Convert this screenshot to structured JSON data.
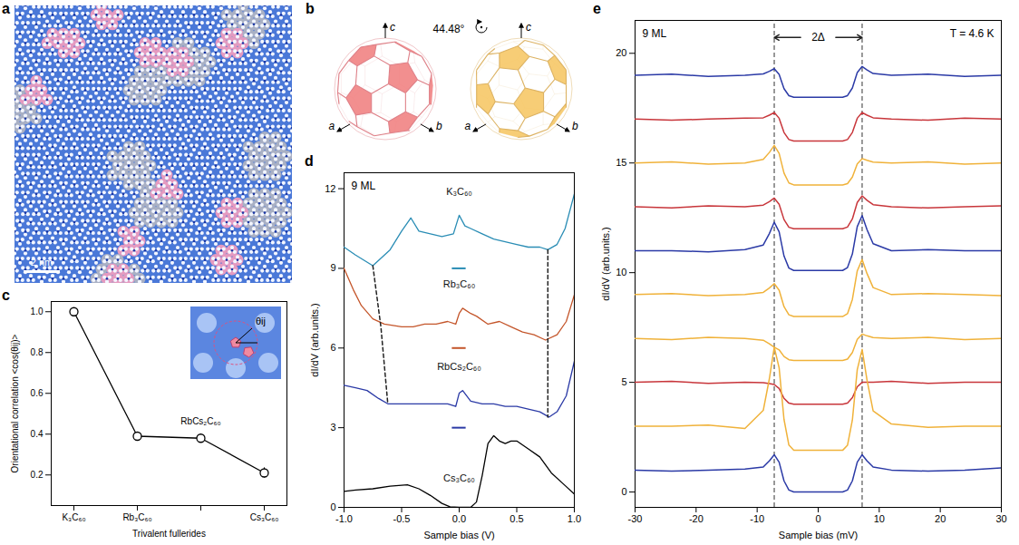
{
  "image": {
    "letter": "a",
    "scale_bar": "2 nm"
  },
  "diagram": {
    "letter": "b",
    "rotation": "44.48°",
    "axis_labels": [
      "a",
      "b",
      "c"
    ]
  },
  "chart_data": [
    {
      "letter": "c",
      "type": "line",
      "x_label": "Trivalent fullerides",
      "y_label": "Orientational correlation <cos(θij)>",
      "categories": [
        "K₃C₆₀",
        "Rb₃C₆₀",
        null,
        "Cs₃C₆₀"
      ],
      "values": [
        1.0,
        0.39,
        0.38,
        0.21
      ],
      "errors": [
        0,
        0.02,
        0.02,
        0.025
      ],
      "color": "#000000",
      "marker": "circle",
      "annotation": "RbCs₂C₆₀",
      "inset_label": "θij",
      "ylim": [
        0.05,
        1.05
      ],
      "yticks": [
        0.2,
        0.4,
        0.6,
        0.8,
        {
          "value": 1,
          "label": "1.0"
        }
      ]
    },
    {
      "letter": "d",
      "type": "line",
      "annotations": [
        "9 ML"
      ],
      "x_label": "Sample bias (V)",
      "y_label": "dI/dV (arb.units.)",
      "xlim": [
        -1,
        1
      ],
      "xticks": [
        {
          "value": -1,
          "label": "-1.0"
        },
        -0.5,
        {
          "value": 0,
          "label": "0.0"
        },
        0.5,
        {
          "value": 1,
          "label": "1.0"
        }
      ],
      "ylim": [
        0,
        12.6
      ],
      "yticks": [
        0,
        3,
        6,
        9,
        12
      ],
      "series": [
        {
          "name": "K₃C₆₀",
          "color": "#2a8db5",
          "zero": 9,
          "x": [
            -1,
            -0.9,
            -0.75,
            -0.6,
            -0.5,
            -0.42,
            -0.35,
            -0.25,
            -0.15,
            -0.05,
            0,
            0.05,
            0.1,
            0.2,
            0.3,
            0.4,
            0.5,
            0.6,
            0.7,
            0.77,
            0.85,
            0.92,
            1.0
          ],
          "values": [
            9.8,
            9.5,
            9.1,
            9.7,
            10.4,
            10.9,
            10.4,
            10.3,
            10.2,
            10.3,
            11.0,
            10.6,
            10.5,
            10.3,
            10.1,
            10.0,
            9.9,
            9.8,
            9.8,
            9.7,
            9.9,
            10.5,
            11.8
          ]
        },
        {
          "name": "Rb₃C₆₀",
          "color": "#c4562b",
          "zero": 6,
          "x": [
            -1,
            -0.92,
            -0.85,
            -0.75,
            -0.65,
            -0.5,
            -0.4,
            -0.3,
            -0.2,
            -0.1,
            -0.03,
            0,
            0.03,
            0.1,
            0.15,
            0.25,
            0.35,
            0.45,
            0.55,
            0.65,
            0.75,
            0.85,
            0.93,
            1.0
          ],
          "values": [
            9.0,
            8.2,
            7.6,
            7.1,
            6.9,
            6.8,
            6.8,
            6.9,
            6.9,
            7.0,
            6.9,
            7.3,
            7.5,
            7.3,
            7.2,
            6.9,
            7.0,
            6.8,
            6.6,
            6.5,
            6.3,
            6.5,
            7.0,
            8.0
          ]
        },
        {
          "name": "RbCs₂C₆₀",
          "color": "#2b3aa6",
          "zero": 3,
          "x": [
            -1,
            -0.9,
            -0.8,
            -0.7,
            -0.62,
            -0.5,
            -0.4,
            -0.3,
            -0.2,
            -0.1,
            -0.03,
            0,
            0.03,
            0.1,
            0.2,
            0.3,
            0.4,
            0.5,
            0.6,
            0.7,
            0.78,
            0.85,
            0.93,
            1.0
          ],
          "values": [
            4.6,
            4.5,
            4.4,
            4.1,
            3.9,
            3.9,
            3.9,
            3.9,
            3.9,
            3.9,
            3.8,
            4.3,
            4.4,
            4.0,
            3.9,
            3.9,
            3.8,
            3.8,
            3.7,
            3.6,
            3.4,
            3.6,
            4.2,
            5.5
          ]
        },
        {
          "name": "Cs₃C₆₀",
          "color": "#000000",
          "x": [
            -1,
            -0.9,
            -0.75,
            -0.6,
            -0.45,
            -0.35,
            -0.25,
            -0.15,
            -0.08,
            0,
            0.1,
            0.15,
            0.2,
            0.25,
            0.3,
            0.35,
            0.4,
            0.45,
            0.5,
            0.6,
            0.7,
            0.8,
            0.9,
            1.0
          ],
          "values": [
            0.6,
            0.65,
            0.7,
            0.8,
            0.85,
            0.7,
            0.45,
            0.15,
            0.02,
            0.0,
            0.0,
            0.2,
            1.2,
            2.4,
            2.7,
            2.5,
            2.4,
            2.5,
            2.5,
            2.2,
            1.9,
            1.3,
            0.9,
            0.5
          ]
        }
      ],
      "dashed_lines": [
        {
          "x": [
            -0.75,
            -0.68,
            -0.62
          ],
          "y": [
            9.1,
            6.8,
            3.9
          ]
        },
        {
          "x": [
            0.77,
            0.77
          ],
          "y": [
            9.7,
            3.4
          ]
        }
      ]
    },
    {
      "letter": "e",
      "type": "line",
      "annotations": [
        "9 ML",
        "T = 4.6 K"
      ],
      "gap_label": "2Δ",
      "reference_lines": [
        -7.2,
        7.2
      ],
      "x_label": "Sample bias (mV)",
      "y_label": "dI/dV (arb.units.)",
      "xlim": [
        -30,
        30
      ],
      "xticks": [
        -30,
        -20,
        -10,
        0,
        10,
        20,
        30
      ],
      "ylim": [
        -0.7,
        21.5
      ],
      "yticks": [
        0,
        5,
        10,
        15,
        20
      ],
      "x": [
        -30,
        -24,
        -18,
        -12,
        -9,
        -8,
        -7.2,
        -6.4,
        -5.6,
        -4.8,
        -4,
        4,
        4.8,
        5.6,
        6.4,
        7.2,
        8,
        9,
        12,
        18,
        24,
        30
      ],
      "series": [
        {
          "color": "#2b3aa6",
          "values": [
            19.0,
            19.05,
            18.95,
            19.0,
            19.06,
            19.18,
            19.3,
            19.04,
            18.39,
            18.07,
            18.0,
            18.0,
            18.07,
            18.42,
            19.12,
            19.4,
            19.24,
            19.08,
            19.0,
            19.05,
            18.95,
            19.0
          ]
        },
        {
          "color": "#c8363b",
          "values": [
            17.0,
            16.95,
            17.0,
            17.05,
            17.06,
            17.18,
            17.3,
            17.04,
            16.39,
            16.07,
            16.0,
            16.0,
            16.07,
            16.39,
            17.04,
            17.3,
            17.18,
            17.06,
            17.0,
            16.95,
            17.05,
            17.0
          ]
        },
        {
          "color": "#f0b23a",
          "values": [
            15.0,
            15.05,
            14.95,
            15.0,
            15.16,
            15.48,
            15.8,
            15.44,
            14.54,
            14.09,
            14.0,
            14.0,
            14.06,
            14.36,
            14.96,
            15.2,
            15.12,
            15.04,
            15.0,
            15.05,
            14.95,
            15.0
          ]
        },
        {
          "color": "#c8363b",
          "values": [
            13.0,
            12.95,
            13.05,
            13.0,
            13.08,
            13.24,
            13.4,
            13.12,
            12.42,
            12.07,
            12.0,
            12.0,
            12.08,
            12.45,
            13.2,
            13.5,
            13.3,
            13.1,
            13.0,
            12.95,
            13.0,
            13.05
          ]
        },
        {
          "color": "#2b3aa6",
          "values": [
            11.0,
            11.0,
            10.95,
            11.05,
            11.26,
            11.78,
            12.3,
            11.86,
            10.76,
            10.21,
            10.1,
            10.1,
            10.23,
            10.85,
            12.1,
            12.6,
            11.96,
            11.32,
            11.0,
            11.05,
            11.0,
            11.0
          ]
        },
        {
          "color": "#f0b23a",
          "values": [
            9.0,
            9.05,
            8.95,
            9.0,
            9.1,
            9.3,
            9.5,
            9.2,
            8.45,
            8.08,
            8.0,
            8.0,
            8.13,
            8.78,
            10.08,
            10.6,
            9.96,
            9.32,
            9.0,
            9.05,
            9.0,
            8.95
          ]
        },
        {
          "color": "#f0b23a",
          "values": [
            7.0,
            6.95,
            7.05,
            7.0,
            6.92,
            6.76,
            6.6,
            6.48,
            6.18,
            6.03,
            6.0,
            6.0,
            6.06,
            6.36,
            6.96,
            7.2,
            7.12,
            7.04,
            7.0,
            7.05,
            6.95,
            7.0
          ]
        },
        {
          "color": "#c8363b",
          "values": [
            5.0,
            5.05,
            4.95,
            5.0,
            4.98,
            4.94,
            4.9,
            4.72,
            4.27,
            4.05,
            4.0,
            4.0,
            4.05,
            4.3,
            4.8,
            5.0,
            5.0,
            5.0,
            5.05,
            4.95,
            5.0,
            5.0
          ]
        },
        {
          "color": "#f0b23a",
          "values": [
            3.0,
            3.0,
            3.05,
            2.9,
            3.72,
            5.16,
            6.6,
            5.66,
            3.31,
            2.14,
            1.9,
            1.9,
            2.13,
            3.28,
            5.58,
            6.5,
            5.1,
            3.7,
            3.1,
            2.95,
            3.0,
            3.0
          ]
        },
        {
          "color": "#2b3aa6",
          "values": [
            1.0,
            0.95,
            1.0,
            1.05,
            1.14,
            1.42,
            1.7,
            1.36,
            0.51,
            0.09,
            0,
            0,
            0.09,
            0.51,
            1.36,
            1.7,
            1.42,
            1.14,
            1.0,
            0.95,
            1.0,
            1.1
          ]
        }
      ]
    }
  ]
}
